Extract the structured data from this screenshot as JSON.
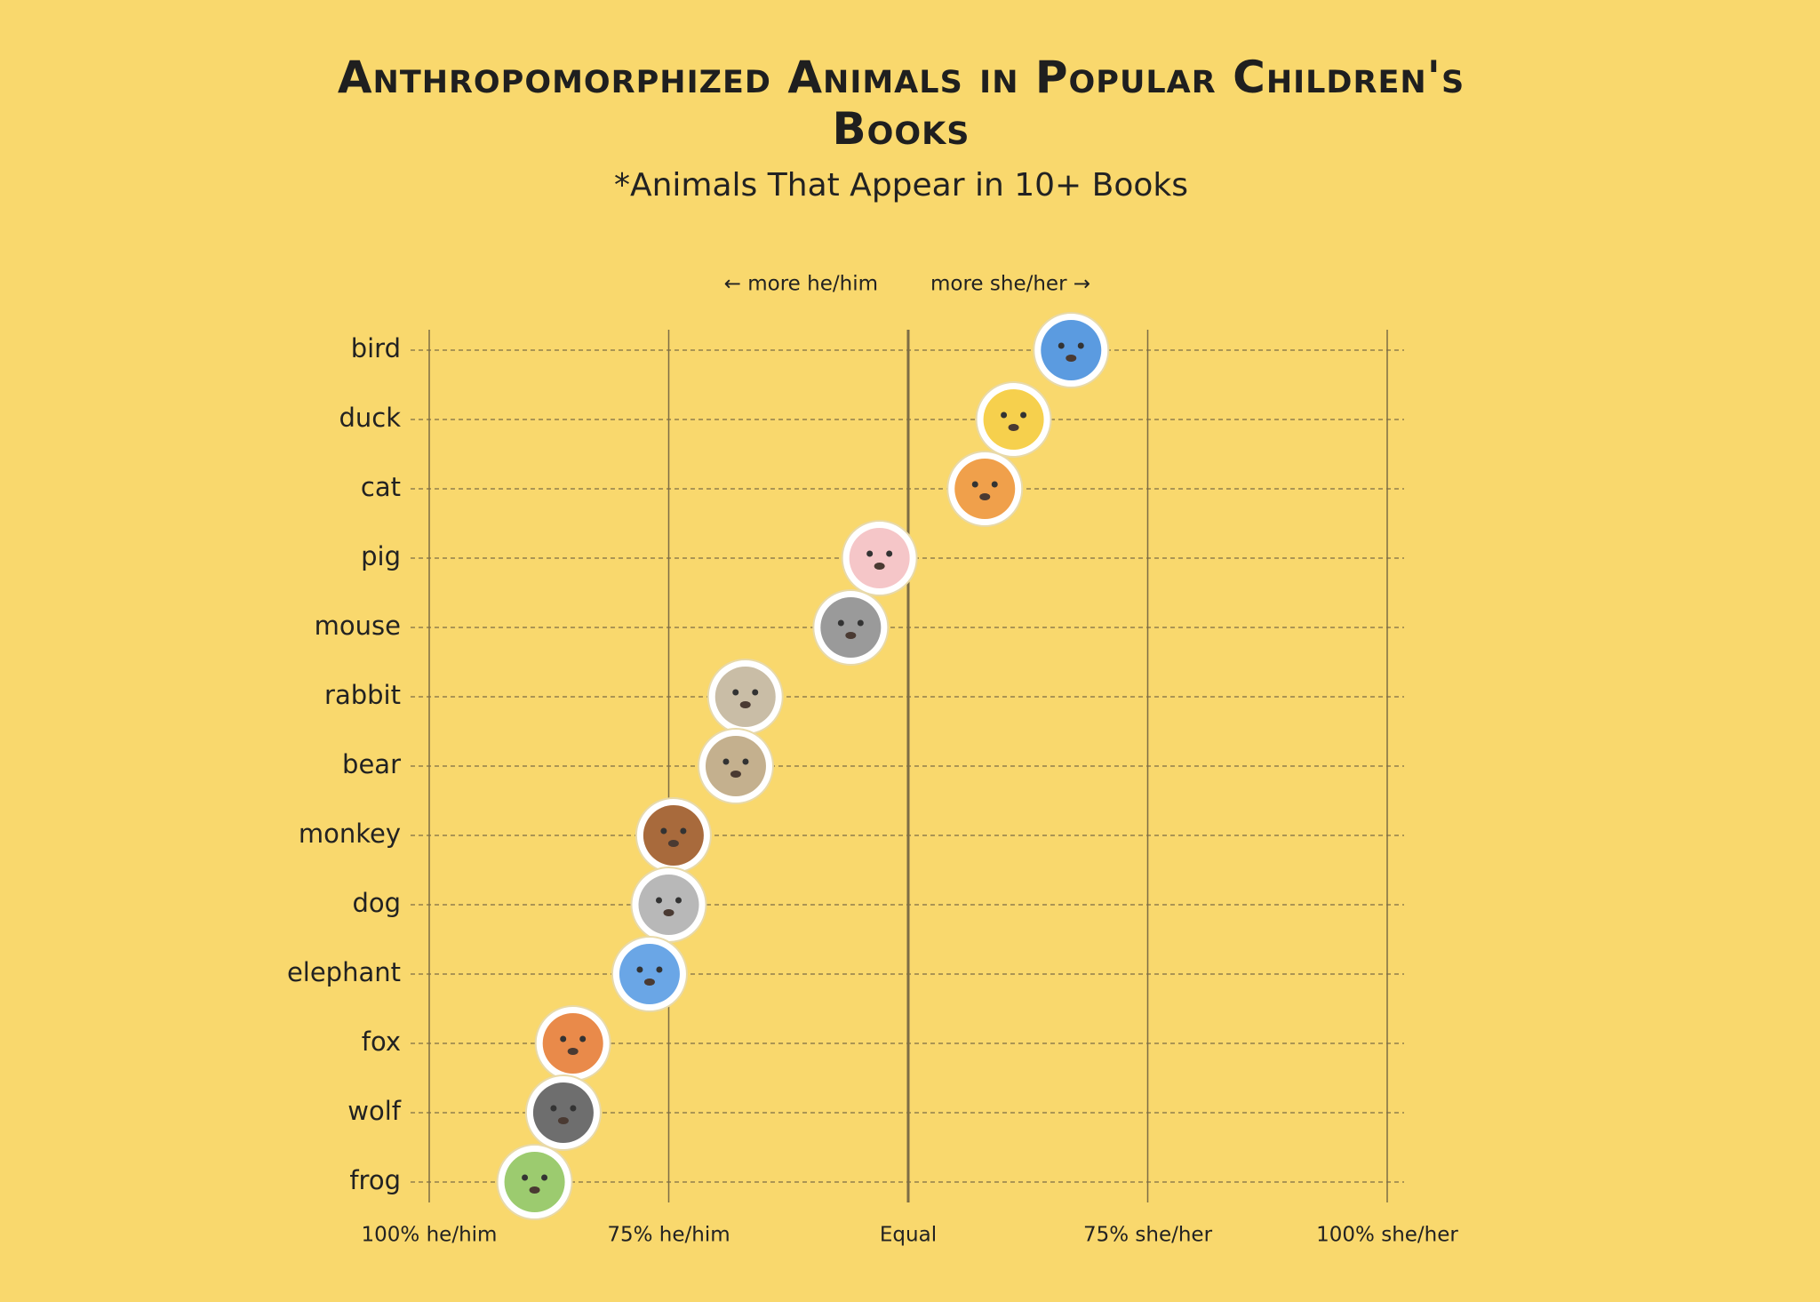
{
  "chart_data": {
    "type": "dot",
    "title": "Anthropomorphized Animals in Popular Children's Books",
    "subtitle": "*Animals That Appear in 10+ Books",
    "annotations": [
      "← more he/him",
      "more she/her →"
    ],
    "categories": [
      "bird",
      "duck",
      "cat",
      "pig",
      "mouse",
      "rabbit",
      "bear",
      "monkey",
      "dog",
      "elephant",
      "fox",
      "wolf",
      "frog"
    ],
    "values": [
      67,
      61,
      58,
      47,
      44,
      33,
      32,
      25.5,
      25,
      23,
      15,
      14,
      11
    ],
    "colors": [
      "#5b9be0",
      "#f6d04d",
      "#f0a04b",
      "#f5c6c8",
      "#9a9a9a",
      "#c9bda6",
      "#c4b08e",
      "#a86a3c",
      "#b8b8b8",
      "#6aa6e6",
      "#e98a4a",
      "#6e6e6e",
      "#9ccb6f"
    ],
    "xlim": [
      0,
      100
    ],
    "xticks": [
      {
        "value": 0,
        "label": "100% he/him"
      },
      {
        "value": 25,
        "label": "75% he/him"
      },
      {
        "value": 50,
        "label": "Equal"
      },
      {
        "value": 75,
        "label": "75% she/her"
      },
      {
        "value": 100,
        "label": "100% she/her"
      }
    ],
    "grid": true
  }
}
